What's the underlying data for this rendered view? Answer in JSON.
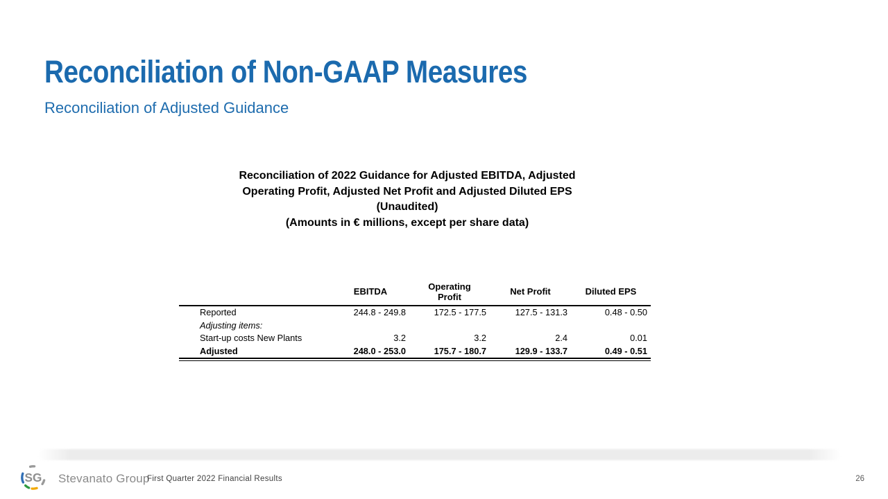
{
  "slide": {
    "title": "Reconciliation of Non-GAAP Measures",
    "subtitle": "Reconciliation of Adjusted Guidance",
    "page_number": "26"
  },
  "table": {
    "caption_lines": [
      "Reconciliation of 2022 Guidance for Adjusted EBITDA, Adjusted",
      "Operating Profit, Adjusted Net Profit and Adjusted Diluted EPS",
      "(Unaudited)",
      "(Amounts in € millions, except per share data)"
    ],
    "column_headers": [
      "EBITDA",
      "Operating Profit",
      "Net Profit",
      "Diluted EPS"
    ],
    "rows": [
      {
        "label": "Reported",
        "style": "normal",
        "values": [
          "244.8 - 249.8",
          "172.5 - 177.5",
          "127.5 - 131.3",
          "0.48 - 0.50"
        ]
      },
      {
        "label": "Adjusting items:",
        "style": "italic",
        "values": [
          "",
          "",
          "",
          ""
        ]
      },
      {
        "label": "Start-up costs New Plants",
        "style": "normal",
        "values": [
          "3.2",
          "3.2",
          "2.4",
          "0.01"
        ]
      },
      {
        "label": "Adjusted",
        "style": "bold",
        "values": [
          "248.0 - 253.0",
          "175.7 - 180.7",
          "129.9 - 133.7",
          "0.49 - 0.51"
        ]
      }
    ]
  },
  "footer": {
    "logo_monogram": "SG",
    "brand": "Stevanato Group",
    "deck_title": "First Quarter 2022 Financial Results"
  },
  "colors": {
    "title_blue": "#1b6aae",
    "subtitle_blue": "#1e6cae",
    "table_text": "#000000",
    "brand_gray": "#8a8a8a",
    "deck_title_gray": "#3f3f3f",
    "page_number_gray": "#595959",
    "divider_band_gray": "#ececec",
    "logo_blue": "#2f6eb5",
    "logo_green": "#2f9a41",
    "logo_orange": "#f2a900",
    "logo_gray": "#9a9a9a"
  }
}
